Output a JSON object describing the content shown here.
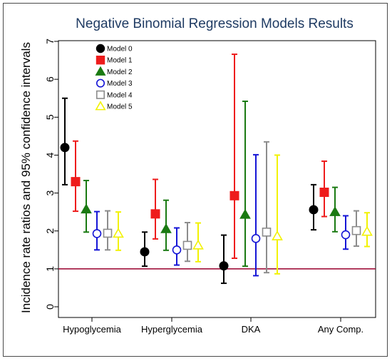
{
  "chart_data": {
    "type": "scatter",
    "title": "Negative Binomial Regression Models Results",
    "xlabel": "",
    "ylabel": "Incidence rate ratios and 95% confidence intervals",
    "ylim": [
      0,
      7
    ],
    "yticks": [
      "0",
      "1",
      "2",
      "3",
      "4",
      "5",
      "6",
      "7"
    ],
    "reference_line": 1,
    "grid": false,
    "legend_position": "top-left",
    "categories": [
      "Hypoglycemia",
      "Hyperglycemia",
      "DKA",
      "Any Comp."
    ],
    "series": [
      {
        "name": "Model 0",
        "color": "#000000",
        "marker": "filled-circle",
        "values": [
          4.2,
          1.45,
          1.08,
          2.56
        ],
        "lower": [
          3.22,
          1.07,
          0.62,
          2.03
        ],
        "upper": [
          5.5,
          1.97,
          1.89,
          3.22
        ]
      },
      {
        "name": "Model 1",
        "color": "#ee1c1c",
        "marker": "filled-square",
        "values": [
          3.3,
          2.45,
          2.93,
          3.02
        ],
        "lower": [
          2.52,
          1.79,
          1.28,
          2.38
        ],
        "upper": [
          4.37,
          3.36,
          6.66,
          3.84
        ]
      },
      {
        "name": "Model 2",
        "color": "#1a7a12",
        "marker": "filled-triangle",
        "values": [
          2.57,
          2.05,
          2.43,
          2.5
        ],
        "lower": [
          1.97,
          1.49,
          1.07,
          1.98
        ],
        "upper": [
          3.33,
          2.81,
          5.42,
          3.15
        ]
      },
      {
        "name": "Model 3",
        "color": "#1515d6",
        "marker": "hollow-circle",
        "values": [
          1.93,
          1.5,
          1.8,
          1.9
        ],
        "lower": [
          1.5,
          1.1,
          0.82,
          1.52
        ],
        "upper": [
          2.51,
          2.08,
          4.01,
          2.4
        ]
      },
      {
        "name": "Model 4",
        "color": "#8c8c8c",
        "marker": "hollow-square",
        "values": [
          1.94,
          1.62,
          1.97,
          2.01
        ],
        "lower": [
          1.5,
          1.2,
          0.9,
          1.6
        ],
        "upper": [
          2.53,
          2.22,
          4.35,
          2.53
        ]
      },
      {
        "name": "Model 5",
        "color": "#f2f200",
        "marker": "hollow-triangle",
        "values": [
          1.93,
          1.62,
          1.86,
          1.98
        ],
        "lower": [
          1.49,
          1.19,
          0.87,
          1.59
        ],
        "upper": [
          2.5,
          2.21,
          4.0,
          2.48
        ]
      }
    ]
  }
}
